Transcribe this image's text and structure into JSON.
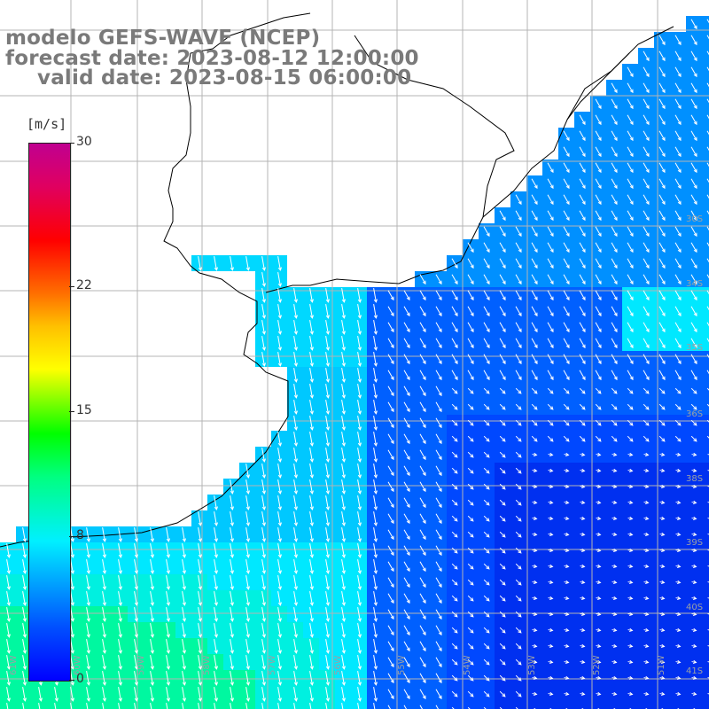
{
  "title": {
    "line1": "modelo GEFS-WAVE (NCEP)",
    "line2": "forecast date: 2023-08-12 12:00:00",
    "line3": "valid date: 2023-08-15 06:00:00"
  },
  "colorbar": {
    "unit": "[m/s]",
    "ticks": [
      {
        "label": "30",
        "value": 30
      },
      {
        "label": "22",
        "value": 22
      },
      {
        "label": "15",
        "value": 15
      },
      {
        "label": "8",
        "value": 8
      },
      {
        "label": "0",
        "value": 0
      }
    ],
    "min": 0,
    "max": 30
  },
  "map": {
    "lat_labels": [
      "30S",
      "34S",
      "35S",
      "36S",
      "38S",
      "39S",
      "40S",
      "41S"
    ],
    "lon_labels": [
      "61W",
      "60W",
      "59W",
      "58W",
      "57W",
      "56W",
      "55W",
      "54W",
      "53W",
      "52W",
      "51W"
    ],
    "colors": {
      "land": "#ffffff",
      "coast": "#000000",
      "grid": "#b4b4b4",
      "cyan": "#00e8ff",
      "blue": "#0060ff",
      "deep_blue": "#0030f0",
      "green": "#00f8a0"
    }
  }
}
